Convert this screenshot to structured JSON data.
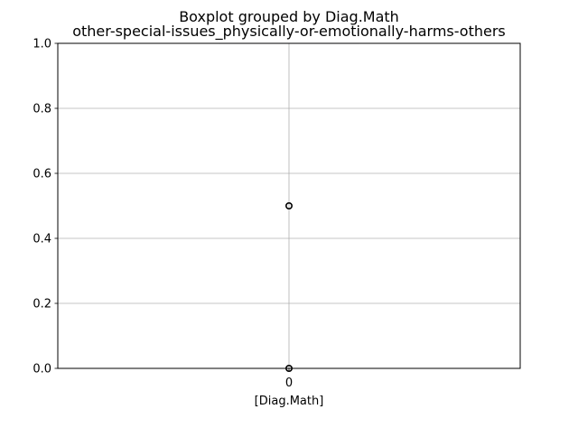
{
  "chart_data": {
    "type": "box",
    "suptitle": "Boxplot grouped by Diag.Math",
    "title": "other-special-issues_physically-or-emotionally-harms-others",
    "xlabel": "[Diag.Math]",
    "ylabel": "",
    "ylim": [
      0,
      1
    ],
    "yticks": [
      0.0,
      0.2,
      0.4,
      0.6,
      0.8,
      1.0
    ],
    "ytick_labels": [
      "0.0",
      "0.2",
      "0.4",
      "0.6",
      "0.8",
      "1.0"
    ],
    "grid": true,
    "categories": [
      "0"
    ],
    "boxes": [
      {
        "category": "0",
        "q1": 1.0,
        "median": 1.0,
        "q3": 1.0,
        "whisker_low": 1.0,
        "whisker_high": 1.0,
        "fliers": [
          0.5,
          0.0
        ]
      }
    ],
    "colors": {
      "box": "#1f77b4",
      "median": "#2ca02c",
      "grid": "#b0b0b0",
      "axes": "#000000"
    }
  }
}
